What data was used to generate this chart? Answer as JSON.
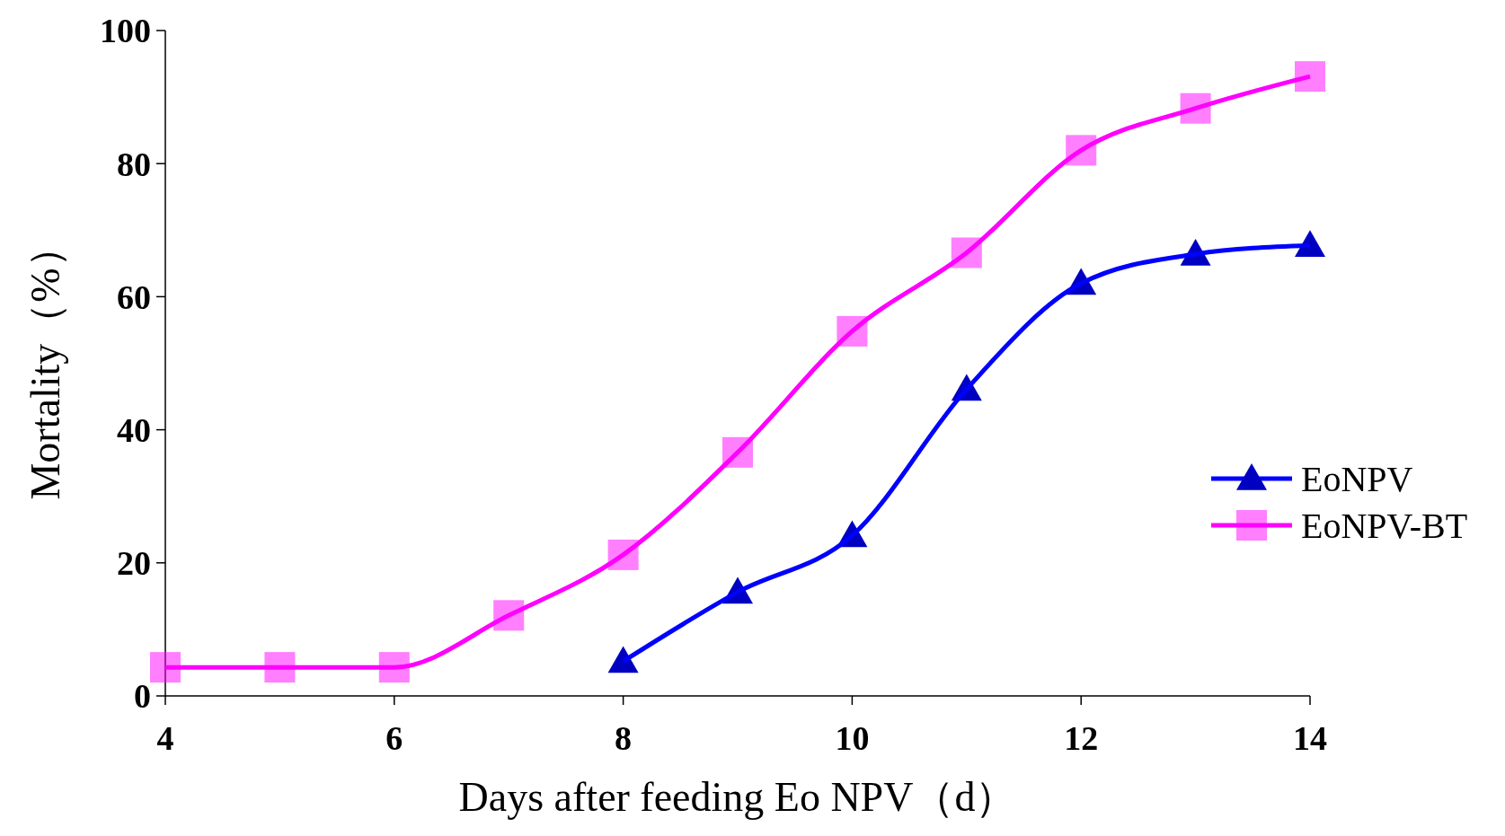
{
  "chart_data": {
    "type": "line",
    "xlabel": "Days after feeding Eo NPV（d）",
    "ylabel": "Mortality（%）",
    "xlim": [
      4,
      14
    ],
    "xticks": [
      4,
      6,
      8,
      10,
      12,
      14
    ],
    "ylim": [
      0,
      100
    ],
    "yticks": [
      0,
      20,
      40,
      60,
      80,
      100
    ],
    "legend": "right",
    "series": [
      {
        "name": "EoNPV",
        "color": "#0000ff",
        "marker": "triangle",
        "x": [
          8,
          9,
          10,
          11,
          12,
          13,
          14
        ],
        "values": [
          5.2,
          15.6,
          24.1,
          46.1,
          62.0,
          66.4,
          67.7
        ]
      },
      {
        "name": "EoNPV-BT",
        "color": "#ff00ff",
        "marker": "square",
        "x": [
          4,
          5,
          6,
          7,
          8,
          9,
          10,
          11,
          12,
          13,
          14
        ],
        "values": [
          4.3,
          4.3,
          4.3,
          12.1,
          21.2,
          36.6,
          54.8,
          66.6,
          82.0,
          88.3,
          93.1
        ]
      }
    ]
  }
}
